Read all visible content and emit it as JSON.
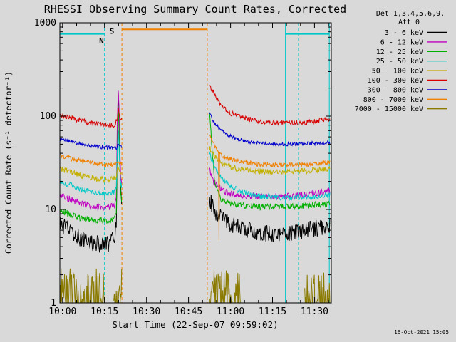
{
  "generated": "16-Oct-2021 15:05",
  "chart_data": {
    "type": "line",
    "title": "RHESSI Observing Summary Count Rates, Corrected",
    "xlabel": "Start Time (22-Sep-07 09:59:02)",
    "ylabel": "Corrected Count Rate (s⁻¹ detector⁻¹)",
    "legend": {
      "header": [
        "Det 1,3,4,5,6,9,",
        "Att 0"
      ],
      "position": "right-outside"
    },
    "x_axis": {
      "unit": "minutes after 10:00 UT",
      "t_start": -0.97,
      "t_end": 96.0,
      "minor_step": 5,
      "ticks": [
        {
          "minutes": 0,
          "label": "10:00"
        },
        {
          "minutes": 15,
          "label": "10:15"
        },
        {
          "minutes": 30,
          "label": "10:30"
        },
        {
          "minutes": 45,
          "label": "10:45"
        },
        {
          "minutes": 60,
          "label": "11:00"
        },
        {
          "minutes": 75,
          "label": "11:15"
        },
        {
          "minutes": 90,
          "label": "11:30"
        }
      ]
    },
    "y_axis": {
      "scale": "log",
      "min": 1,
      "max": 1000,
      "ticks": [
        {
          "value": 1,
          "label": "1"
        },
        {
          "value": 10,
          "label": "10"
        },
        {
          "value": 100,
          "label": "100"
        },
        {
          "value": 1000,
          "label": "1000"
        }
      ]
    },
    "series": [
      {
        "label": "3 - 6 keV",
        "color": "#000000",
        "noise": 0.09,
        "segments": [
          [
            [
              -0.9,
              6.8
            ],
            [
              3,
              5.8
            ],
            [
              6,
              5.0
            ],
            [
              9,
              4.6
            ],
            [
              12,
              4.3
            ],
            [
              15,
              4.2
            ],
            [
              17,
              4.4
            ],
            [
              18.5,
              4.9
            ],
            [
              19.2,
              6.5
            ],
            [
              19.55,
              60
            ],
            [
              19.9,
              200
            ],
            [
              20.15,
              110
            ],
            [
              20.5,
              28
            ],
            [
              20.8,
              14
            ],
            [
              21.1,
              11
            ]
          ],
          [
            [
              52.5,
              13
            ],
            [
              54,
              10
            ],
            [
              56,
              8.5
            ],
            [
              58,
              7.6
            ],
            [
              60,
              7.1
            ],
            [
              63,
              6.4
            ],
            [
              67,
              5.9
            ],
            [
              72,
              5.6
            ],
            [
              78,
              5.4
            ],
            [
              84,
              5.7
            ],
            [
              90,
              6.2
            ],
            [
              95.5,
              6.9
            ]
          ]
        ]
      },
      {
        "label": "6 - 12 keV",
        "color": "#c000c0",
        "noise": 0.035,
        "segments": [
          [
            [
              -0.9,
              14
            ],
            [
              3,
              12.8
            ],
            [
              6,
              11.8
            ],
            [
              9,
              11.1
            ],
            [
              12,
              10.7
            ],
            [
              15,
              10.4
            ],
            [
              17,
              10.6
            ],
            [
              18.5,
              11.2
            ],
            [
              19.2,
              14
            ],
            [
              19.55,
              80
            ],
            [
              19.9,
              190
            ],
            [
              20.15,
              120
            ],
            [
              20.5,
              38
            ],
            [
              20.8,
              22
            ],
            [
              21.1,
              18
            ]
          ],
          [
            [
              52.5,
              26
            ],
            [
              54,
              20
            ],
            [
              56,
              17
            ],
            [
              58,
              15.6
            ],
            [
              61,
              14.6
            ],
            [
              65,
              14
            ],
            [
              72,
              13.7
            ],
            [
              80,
              13.9
            ],
            [
              88,
              14.6
            ],
            [
              95.5,
              15.6
            ]
          ]
        ]
      },
      {
        "label": "12 - 25 keV",
        "color": "#00b000",
        "noise": 0.035,
        "segments": [
          [
            [
              -0.9,
              9.6
            ],
            [
              3,
              8.8
            ],
            [
              6,
              8.2
            ],
            [
              9,
              7.8
            ],
            [
              12,
              7.6
            ],
            [
              15,
              7.5
            ],
            [
              17,
              7.7
            ],
            [
              18.5,
              8.1
            ],
            [
              19.2,
              9.5
            ],
            [
              19.55,
              45
            ],
            [
              19.9,
              130
            ],
            [
              20.15,
              75
            ],
            [
              20.5,
              24
            ],
            [
              20.8,
              14
            ],
            [
              21.1,
              12
            ]
          ],
          [
            [
              52.5,
              110
            ],
            [
              53,
              68
            ],
            [
              53.6,
              38
            ],
            [
              54.3,
              21
            ],
            [
              55.2,
              15.5
            ],
            [
              56.5,
              13
            ],
            [
              58,
              12.1
            ],
            [
              61,
              11.4
            ],
            [
              66,
              10.9
            ],
            [
              74,
              10.6
            ],
            [
              84,
              10.9
            ],
            [
              95.5,
              11.6
            ]
          ]
        ]
      },
      {
        "label": "25 - 50 keV",
        "color": "#00c8c8",
        "noise": 0.03,
        "segments": [
          [
            [
              -0.9,
              20
            ],
            [
              3,
              18.2
            ],
            [
              6,
              16.8
            ],
            [
              9,
              15.8
            ],
            [
              12,
              15.2
            ],
            [
              15,
              14.8
            ],
            [
              17,
              14.9
            ],
            [
              18.5,
              15.3
            ],
            [
              19.2,
              16.5
            ],
            [
              19.55,
              40
            ],
            [
              19.9,
              68
            ],
            [
              20.15,
              48
            ],
            [
              20.5,
              26
            ],
            [
              20.8,
              19
            ],
            [
              21.1,
              17.5
            ]
          ],
          [
            [
              52.5,
              40
            ],
            [
              54,
              30
            ],
            [
              56,
              24
            ],
            [
              58,
              20
            ],
            [
              61,
              17
            ],
            [
              65,
              15.2
            ],
            [
              70,
              14
            ],
            [
              78,
              13.3
            ],
            [
              86,
              13.5
            ],
            [
              95.5,
              14.2
            ]
          ]
        ]
      },
      {
        "label": "50 - 100 keV",
        "color": "#c4b000",
        "noise": 0.03,
        "segments": [
          [
            [
              -0.9,
              27.5
            ],
            [
              3,
              25.2
            ],
            [
              6,
              23.4
            ],
            [
              9,
              22.2
            ],
            [
              12,
              21.4
            ],
            [
              15,
              21
            ],
            [
              17,
              21
            ],
            [
              19,
              21.6
            ],
            [
              19.9,
              30
            ],
            [
              20.5,
              25
            ],
            [
              21.1,
              23
            ]
          ],
          [
            [
              52.5,
              46
            ],
            [
              54,
              38
            ],
            [
              56,
              33
            ],
            [
              58,
              30.2
            ],
            [
              61,
              28
            ],
            [
              65,
              26.6
            ],
            [
              70,
              25.7
            ],
            [
              78,
              25.2
            ],
            [
              86,
              25.9
            ],
            [
              95.5,
              27
            ]
          ]
        ]
      },
      {
        "label": "100 - 300 keV",
        "color": "#d80000",
        "noise": 0.028,
        "segments": [
          [
            [
              -0.9,
              105
            ],
            [
              3,
              96
            ],
            [
              6,
              90
            ],
            [
              9,
              85.5
            ],
            [
              12,
              82.5
            ],
            [
              15,
              80.5
            ],
            [
              17,
              80
            ],
            [
              18.7,
              80.5
            ],
            [
              19.55,
              95
            ],
            [
              19.9,
              130
            ],
            [
              20.3,
              100
            ],
            [
              21.1,
              90
            ]
          ],
          [
            [
              52.5,
              215
            ],
            [
              53.5,
              185
            ],
            [
              55,
              152
            ],
            [
              57,
              127
            ],
            [
              59,
              112
            ],
            [
              62,
              101
            ],
            [
              66,
              93
            ],
            [
              71,
              88
            ],
            [
              77,
              85
            ],
            [
              84,
              84.5
            ],
            [
              90,
              88
            ],
            [
              95.5,
              93
            ]
          ]
        ]
      },
      {
        "label": "300 - 800 keV",
        "color": "#0000cc",
        "noise": 0.02,
        "segments": [
          [
            [
              -0.9,
              57
            ],
            [
              3,
              53.5
            ],
            [
              6,
              50.8
            ],
            [
              9,
              48.8
            ],
            [
              12,
              47.3
            ],
            [
              15,
              46.3
            ],
            [
              17,
              45.8
            ],
            [
              19.2,
              45.8
            ],
            [
              19.9,
              49
            ],
            [
              20.5,
              47
            ],
            [
              21.1,
              46.5
            ]
          ],
          [
            [
              52.5,
              105
            ],
            [
              54,
              88
            ],
            [
              56,
              74
            ],
            [
              58,
              65.5
            ],
            [
              61,
              58.5
            ],
            [
              65,
              54
            ],
            [
              70,
              51.3
            ],
            [
              77,
              49.8
            ],
            [
              85,
              50.3
            ],
            [
              95.5,
              52.2
            ]
          ]
        ]
      },
      {
        "label": "800 - 7000 keV",
        "color": "#f08000",
        "noise": 0.025,
        "segments": [
          [
            [
              -0.9,
              37.5
            ],
            [
              3,
              35.2
            ],
            [
              6,
              33.3
            ],
            [
              9,
              32
            ],
            [
              12,
              31
            ],
            [
              15,
              30.4
            ],
            [
              17,
              30.2
            ],
            [
              19.2,
              30.3
            ],
            [
              19.9,
              32
            ],
            [
              20.5,
              31
            ],
            [
              21.1,
              30.8
            ]
          ],
          [
            [
              52.5,
              62
            ],
            [
              53.5,
              52
            ],
            [
              55,
              44.5
            ],
            [
              55.7,
              41
            ],
            [
              55.9,
              4.6
            ],
            [
              56.1,
              39
            ],
            [
              58,
              36.2
            ],
            [
              61,
              33.6
            ],
            [
              65,
              31.9
            ],
            [
              70,
              30.6
            ],
            [
              77,
              29.9
            ],
            [
              85,
              30.3
            ],
            [
              95.5,
              31.6
            ]
          ]
        ]
      },
      {
        "label": "7000 - 15000 keV",
        "color": "#8a7a00",
        "noise": 0.35,
        "floor": 1.0,
        "sample_step": 0.18,
        "segments": [
          [
            [
              -0.9,
              1.05
            ],
            [
              15.3,
              1.05
            ]
          ],
          [
            [
              18.3,
              1.05
            ],
            [
              21.1,
              1.05
            ]
          ],
          [
            [
              52.5,
              1.1
            ],
            [
              63.5,
              1.05
            ]
          ],
          [
            [
              86.5,
              1.05
            ],
            [
              95.5,
              1.05
            ]
          ]
        ]
      }
    ],
    "event_lines": {
      "vertical": [
        {
          "t": 15.0,
          "color": "#00c8c8",
          "style": "dashed"
        },
        {
          "t": 84.3,
          "color": "#00c8c8",
          "style": "dashed"
        },
        {
          "t": 21.2,
          "color": "#f08000",
          "style": "dashed"
        },
        {
          "t": 51.7,
          "color": "#f08000",
          "style": "dashed"
        },
        {
          "t": 79.6,
          "color": "#00c8c8",
          "style": "solid"
        },
        {
          "t": 95.3,
          "color": "#00c8c8",
          "style": "solid"
        }
      ],
      "horizontal": [
        {
          "flag": "N",
          "color": "#00c8c8",
          "value": 760,
          "ranges": [
            [
              -0.97,
              15.0
            ],
            [
              79.6,
              95.3
            ]
          ]
        },
        {
          "flag": "S",
          "color": "#f08000",
          "value": 850,
          "ranges": [
            [
              21.2,
              51.7
            ]
          ]
        }
      ]
    },
    "flags": [
      {
        "label": "S",
        "color": "#f08000",
        "t": 17.6,
        "v": 760
      },
      {
        "label": "N",
        "color": "#00c8c8",
        "t": 13.9,
        "v": 600
      }
    ]
  }
}
